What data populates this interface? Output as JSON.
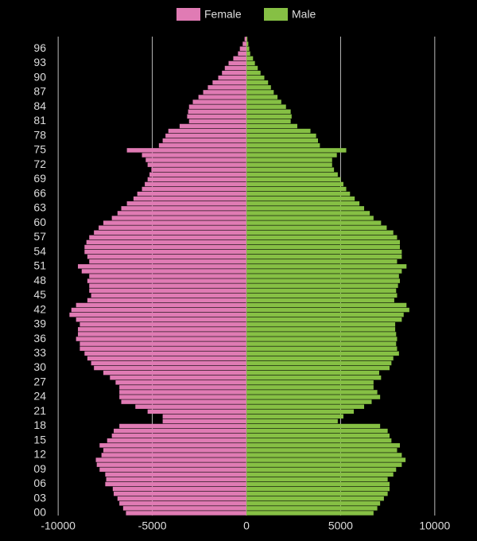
{
  "chart_data": {
    "type": "bar",
    "orientation": "horizontal",
    "categories": [
      "00",
      null,
      null,
      "03",
      null,
      null,
      "06",
      null,
      null,
      "09",
      null,
      null,
      "12",
      null,
      null,
      "15",
      null,
      null,
      "18",
      null,
      null,
      "21",
      null,
      null,
      "24",
      null,
      null,
      "27",
      null,
      null,
      "30",
      null,
      null,
      "33",
      null,
      null,
      "36",
      null,
      null,
      "39",
      null,
      null,
      "42",
      null,
      null,
      "45",
      null,
      null,
      "48",
      null,
      null,
      "51",
      null,
      null,
      "54",
      null,
      null,
      "57",
      null,
      null,
      "60",
      null,
      null,
      "63",
      null,
      null,
      "66",
      null,
      null,
      "69",
      null,
      null,
      "72",
      null,
      null,
      "75",
      null,
      null,
      "78",
      null,
      null,
      "81",
      null,
      null,
      "84",
      null,
      null,
      "87",
      null,
      null,
      "90",
      null,
      null,
      "93",
      null,
      null,
      "96",
      null,
      null
    ],
    "series": [
      {
        "name": "Female",
        "color": "#e07bb4",
        "values": [
          -6400,
          -6550,
          -6750,
          -6850,
          -7050,
          -7100,
          -7500,
          -7450,
          -7500,
          -7800,
          -7950,
          -8000,
          -7700,
          -7600,
          -7800,
          -7400,
          -7150,
          -7050,
          -6750,
          -4450,
          -4450,
          -5250,
          -5900,
          -6650,
          -6750,
          -6750,
          -6750,
          -6950,
          -7250,
          -7600,
          -8100,
          -8250,
          -8450,
          -8600,
          -8850,
          -8850,
          -9050,
          -8950,
          -8950,
          -8850,
          -9050,
          -9400,
          -9300,
          -9050,
          -8450,
          -8250,
          -8350,
          -8350,
          -8450,
          -8350,
          -8750,
          -8950,
          -8350,
          -8450,
          -8600,
          -8600,
          -8500,
          -8350,
          -8100,
          -7850,
          -7600,
          -7150,
          -6850,
          -6650,
          -6350,
          -6000,
          -5800,
          -5550,
          -5400,
          -5250,
          -5150,
          -5050,
          -5250,
          -5350,
          -5550,
          -6350,
          -4650,
          -4450,
          -4300,
          -4150,
          -3550,
          -3050,
          -3150,
          -3100,
          -3050,
          -2850,
          -2550,
          -2300,
          -2050,
          -1800,
          -1500,
          -1300,
          -1150,
          -950,
          -700,
          -450,
          -350,
          -200,
          -100
        ]
      },
      {
        "name": "Male",
        "color": "#86c044",
        "values": [
          6750,
          6950,
          7100,
          7300,
          7500,
          7600,
          7600,
          7500,
          7800,
          7950,
          8250,
          8450,
          8250,
          8000,
          8150,
          7700,
          7600,
          7500,
          7100,
          4850,
          5150,
          5700,
          6250,
          6650,
          7100,
          6950,
          6750,
          6750,
          7150,
          7050,
          7600,
          7700,
          7800,
          8100,
          8000,
          7950,
          8000,
          7950,
          7900,
          7900,
          8250,
          8350,
          8650,
          8500,
          7850,
          8000,
          7950,
          8050,
          8150,
          8100,
          8250,
          8500,
          8000,
          8250,
          8250,
          8150,
          8150,
          8000,
          7800,
          7450,
          7150,
          6750,
          6550,
          6250,
          6000,
          5750,
          5500,
          5300,
          5150,
          5000,
          4850,
          4650,
          4550,
          4550,
          4800,
          5300,
          3900,
          3800,
          3700,
          3400,
          2700,
          2350,
          2400,
          2350,
          2100,
          1850,
          1650,
          1450,
          1300,
          1150,
          950,
          750,
          600,
          450,
          350,
          200,
          150,
          100,
          50
        ]
      }
    ],
    "xlim": [
      -11400,
      11400
    ],
    "xticks": [
      -10000,
      -5000,
      0,
      5000,
      10000
    ],
    "grid": true,
    "legend": "top"
  }
}
